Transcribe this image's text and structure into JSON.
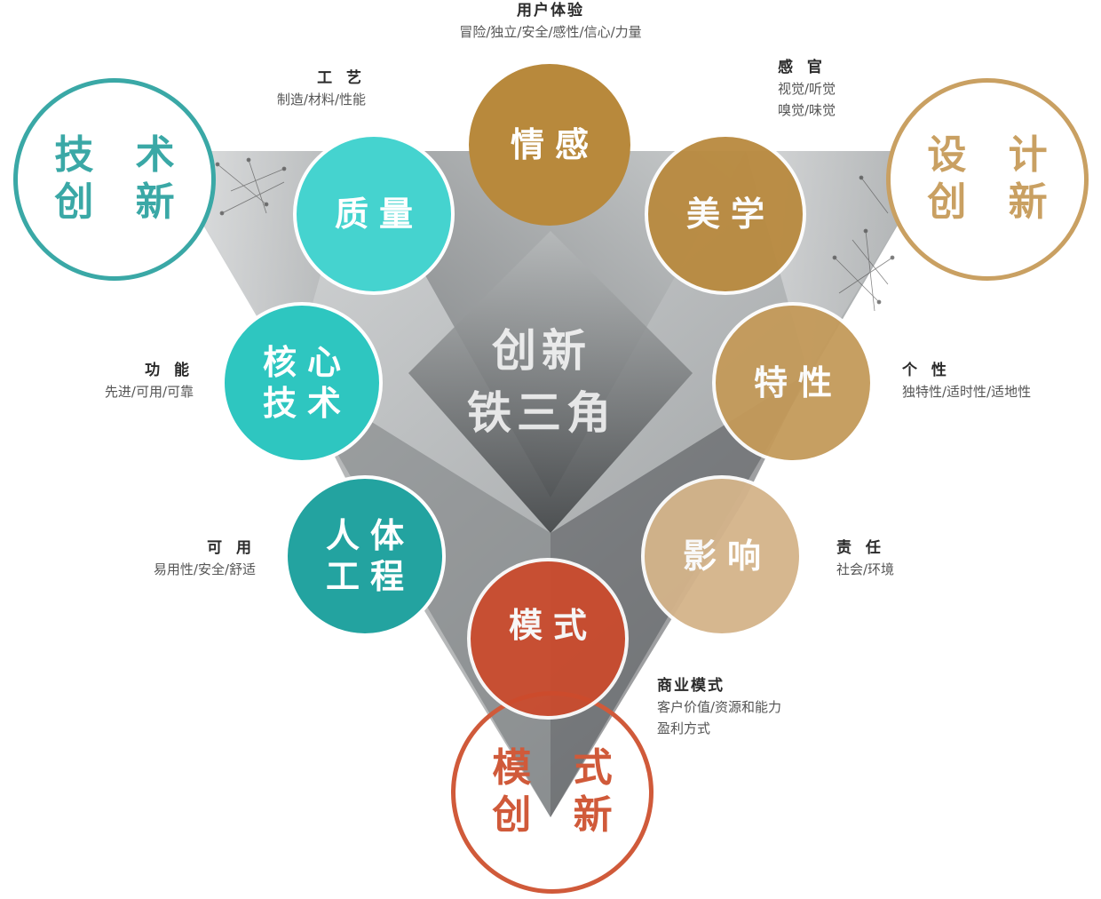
{
  "center": {
    "line1": "创新",
    "line2": "铁三角"
  },
  "corners": {
    "tech": {
      "line1": "技 术",
      "line2": "创 新",
      "color": "#3aa8a6"
    },
    "design": {
      "line1": "设 计",
      "line2": "创 新",
      "color": "#c9a062"
    },
    "model": {
      "line1": "模 式",
      "line2": "创 新",
      "color": "#d05a3a"
    }
  },
  "discs": {
    "emotion": {
      "line1": "情感",
      "color": "#b8893c"
    },
    "quality": {
      "line1": "质量",
      "color": "#45d3cf"
    },
    "aesthetics": {
      "line1": "美学",
      "color": "#b98a3f"
    },
    "core_tech": {
      "line1": "核心",
      "line2": "技术",
      "color": "#2ec6c0"
    },
    "personality": {
      "line1": "特性",
      "color": "#c49a5a"
    },
    "ergonomics": {
      "line1": "人体",
      "line2": "工程",
      "color": "#23a3a0"
    },
    "influence": {
      "line1": "影响",
      "color": "#d4b48a"
    },
    "mode": {
      "line1": "模式",
      "color": "#cc4a2c"
    }
  },
  "labels": {
    "user_experience": {
      "title": "用户体验",
      "sub": "冒险/独立/安全/感性/信心/力量"
    },
    "craft": {
      "title": "工 艺",
      "sub": "制造/材料/性能"
    },
    "senses": {
      "title": "感 官",
      "sub1": "视觉/听觉",
      "sub2": "嗅觉/味觉"
    },
    "function": {
      "title": "功 能",
      "sub": "先进/可用/可靠"
    },
    "individuality": {
      "title": "个 性",
      "sub": "独特性/适时性/适地性"
    },
    "usability": {
      "title": "可 用",
      "sub": "易用性/安全/舒适"
    },
    "responsibility": {
      "title": "责 任",
      "sub": "社会/环境"
    },
    "business_model": {
      "title": "商业模式",
      "sub1": "客户价值/资源和能力",
      "sub2": "盈利方式"
    }
  }
}
